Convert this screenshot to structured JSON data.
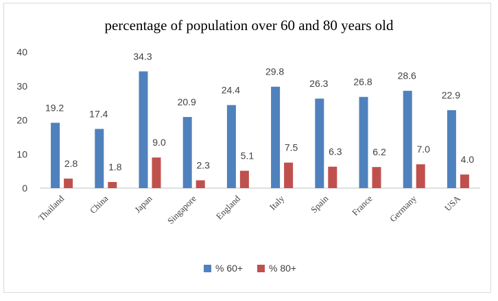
{
  "chart_data": {
    "type": "bar",
    "title": "percentage of population over 60 and 80 years old",
    "categories": [
      "Thailand",
      "China",
      "Japan",
      "Singapore",
      "England",
      "Italy",
      "Spain",
      "France",
      "Germany",
      "USA"
    ],
    "series": [
      {
        "name": "% 60+",
        "color": "#4f81bd",
        "values": [
          19.2,
          17.4,
          34.3,
          20.9,
          24.4,
          29.8,
          26.3,
          26.8,
          28.6,
          22.9
        ]
      },
      {
        "name": "% 80+",
        "color": "#c0504d",
        "values": [
          2.8,
          1.8,
          9.0,
          2.3,
          5.1,
          7.5,
          6.3,
          6.2,
          7.0,
          4.0
        ]
      }
    ],
    "yticks": [
      "0",
      "10",
      "20",
      "30",
      "40"
    ],
    "ylim": [
      0,
      40
    ],
    "legend_position": "bottom",
    "grid": false,
    "data_labels": true
  }
}
